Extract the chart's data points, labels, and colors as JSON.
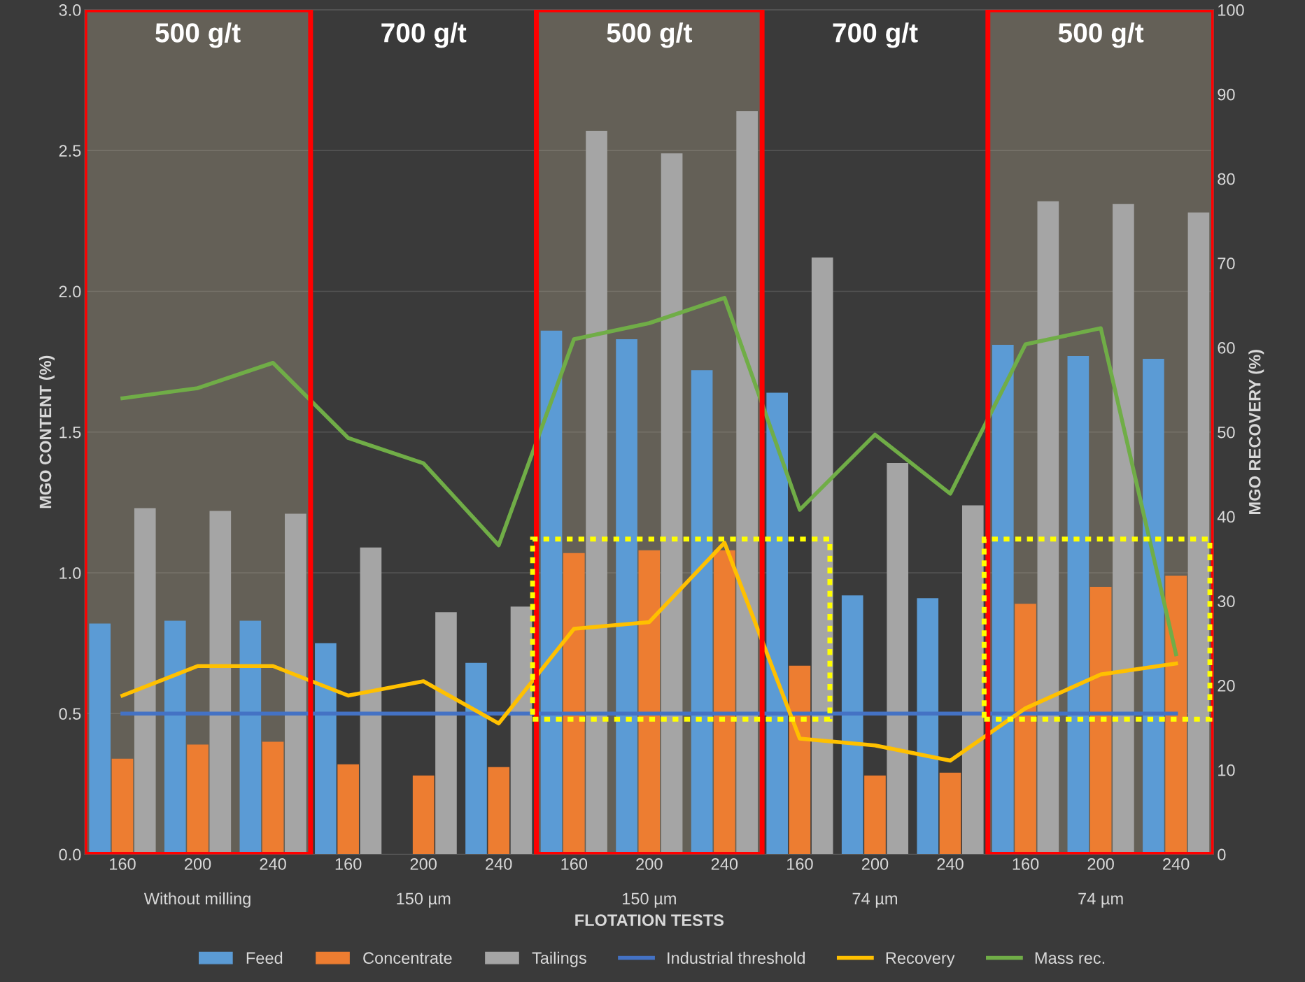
{
  "chart_data": {
    "type": "bar",
    "xlabel": "FLOTATION TESTS",
    "ylabel": "MGO CONTENT (%)",
    "y2label": "MGO RECOVERY (%)",
    "categories": [
      "160",
      "200",
      "240",
      "160",
      "200",
      "240",
      "160",
      "200",
      "240",
      "160",
      "200",
      "240",
      "160",
      "200",
      "240"
    ],
    "annotations": [
      "500 g/t",
      "700 g/t",
      "500 g/t",
      "700 g/t",
      "500 g/t",
      "Without milling",
      "150 µm",
      "150 µm",
      "74 µm",
      "74 µm"
    ],
    "series": [
      {
        "name": "Feed",
        "color": "#5b9bd5",
        "values": [
          0.82,
          0.83,
          0.83,
          0.75,
          null,
          0.68,
          1.86,
          1.83,
          1.72,
          1.64,
          0.92,
          0.91,
          1.81,
          1.77,
          1.76
        ]
      },
      {
        "name": "Concentrate",
        "color": "#ed7d31",
        "values": [
          0.34,
          0.39,
          0.4,
          0.32,
          0.28,
          0.31,
          1.07,
          1.08,
          1.08,
          0.67,
          0.28,
          0.29,
          0.89,
          0.95,
          0.99
        ]
      },
      {
        "name": "Tailings",
        "color": "#a5a5a5",
        "values": [
          1.23,
          1.22,
          1.21,
          1.09,
          0.86,
          0.88,
          2.57,
          2.49,
          2.64,
          2.12,
          1.39,
          1.24,
          2.32,
          2.31,
          2.28
        ]
      },
      {
        "name": "Industrial threshold",
        "type": "line",
        "color": "#4472c4",
        "values": [
          0.5,
          0.5,
          0.5,
          0.5,
          0.5,
          0.5,
          0.5,
          0.5,
          0.5,
          0.5,
          0.5,
          0.5,
          0.5,
          0.5,
          0.5
        ]
      },
      {
        "name": "Recovery",
        "type": "line",
        "axis": "y2",
        "color": "#ffc000",
        "values": [
          18.8,
          22.3,
          22.3,
          18.8,
          20.5,
          15.5,
          26.7,
          27.5,
          36.9,
          13.7,
          12.9,
          11.1,
          17.3,
          21.3,
          22.6
        ]
      },
      {
        "name": "Mass rec.",
        "type": "line",
        "axis": "y2",
        "color": "#70ad47",
        "values": [
          54.0,
          55.2,
          58.2,
          49.3,
          46.3,
          36.6,
          61.0,
          62.9,
          65.9,
          40.8,
          49.7,
          42.7,
          60.4,
          62.3,
          23.7
        ]
      }
    ],
    "ylim": [
      0,
      3
    ],
    "yticks": [
      {
        "value": 0,
        "label": "0.0"
      },
      0.5,
      {
        "value": 1,
        "label": "1.0"
      },
      1.5,
      {
        "value": 2,
        "label": "2.0"
      },
      2.5,
      {
        "value": 3,
        "label": "3.0"
      }
    ],
    "y2lim": [
      0,
      100
    ],
    "y2ticks": [
      0,
      10,
      20,
      30,
      40,
      50,
      60,
      70,
      80,
      90,
      100
    ],
    "grid": "y",
    "legend": "bottom"
  }
}
